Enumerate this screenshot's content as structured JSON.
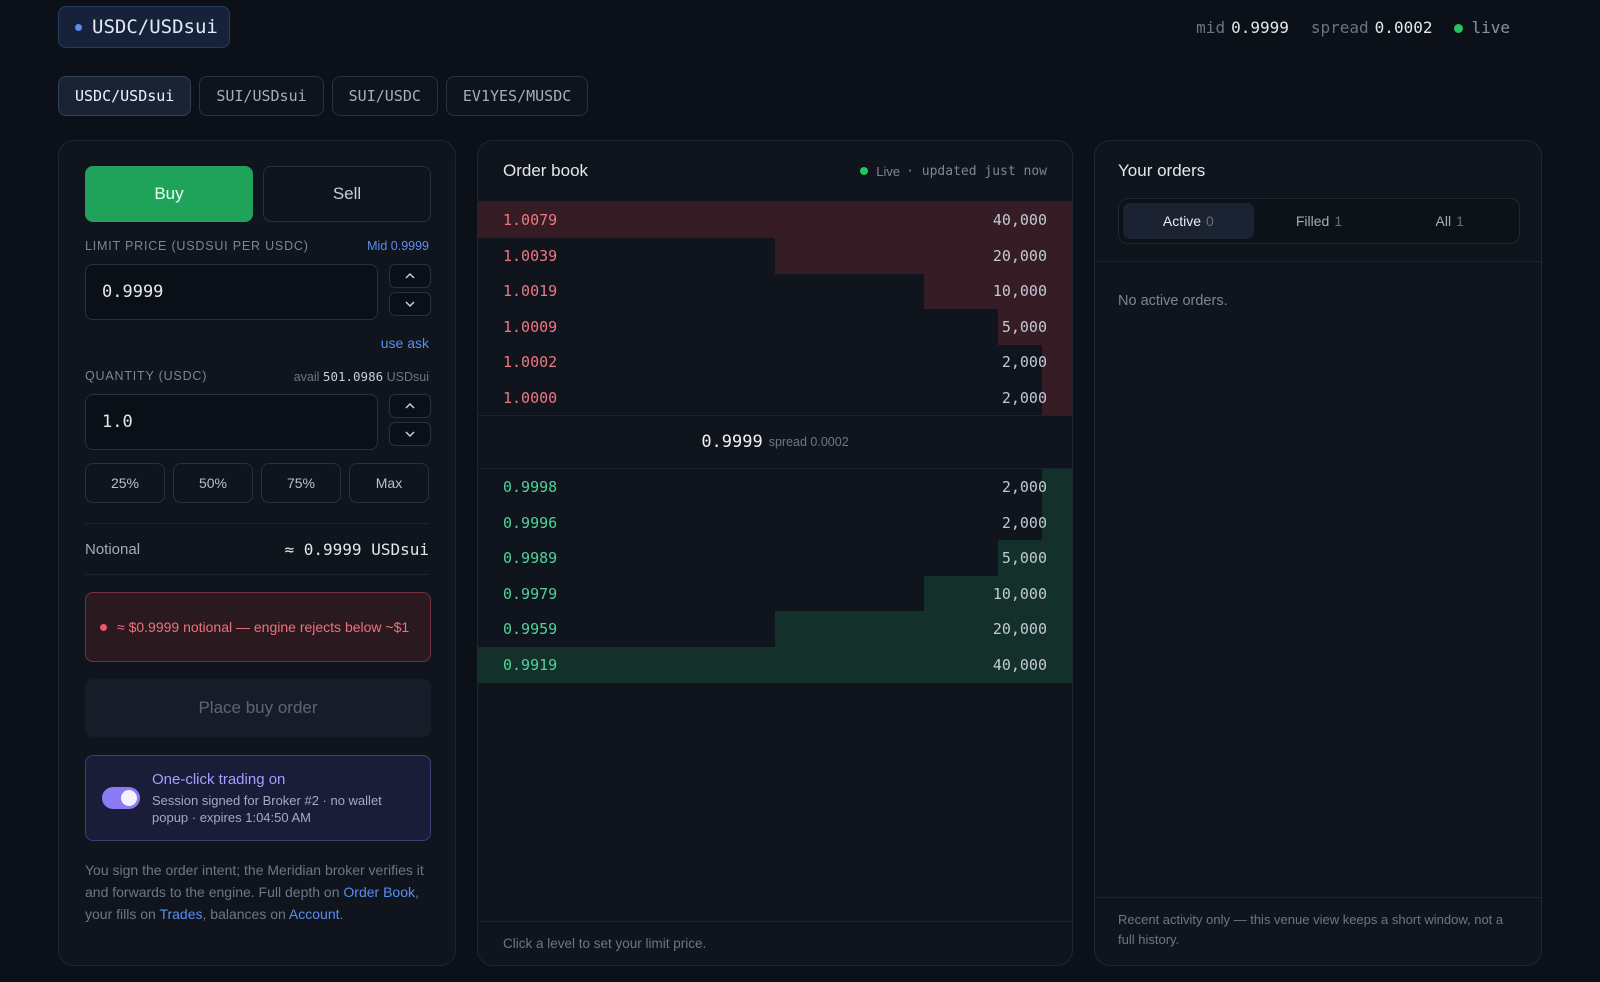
{
  "header": {
    "pair": "USDC/USDsui",
    "mid_label": "mid",
    "mid_value": "0.9999",
    "spread_label": "spread",
    "spread_value": "0.0002",
    "live_label": "live"
  },
  "market_tabs": [
    {
      "label": "USDC/USDsui",
      "active": true
    },
    {
      "label": "SUI/USDsui",
      "active": false
    },
    {
      "label": "SUI/USDC",
      "active": false
    },
    {
      "label": "EV1YES/MUSDC",
      "active": false
    }
  ],
  "trade_form": {
    "buy_label": "Buy",
    "sell_label": "Sell",
    "limit_price_label": "LIMIT PRICE (USDSUI PER USDC)",
    "mid_hint_label": "Mid",
    "mid_hint_value": "0.9999",
    "limit_price_value": "0.9999",
    "use_ask_label": "use ask",
    "quantity_label": "QUANTITY (USDC)",
    "avail_label": "avail",
    "avail_value": "501.0986",
    "avail_unit": "USDsui",
    "quantity_value": "1.0",
    "pct_buttons": [
      "25%",
      "50%",
      "75%",
      "Max"
    ],
    "notional_label": "Notional",
    "notional_value": "≈ 0.9999 USDsui",
    "warning_text": "≈ $0.9999 notional — engine rejects below ~$1",
    "place_button": "Place buy order",
    "oneclick_title": "One-click trading on",
    "oneclick_sub": "Session signed for Broker #2 · no wallet popup · expires 1:04:50 AM",
    "footnote_1": "You sign the order intent; the Meridian broker verifies it and forwards to the engine. Full depth on ",
    "footnote_link_order_book": "Order Book",
    "footnote_2": ", your fills on ",
    "footnote_link_trades": "Trades",
    "footnote_3": ", balances on ",
    "footnote_link_account": "Account",
    "footnote_4": "."
  },
  "order_book": {
    "title": "Order book",
    "status_live": "Live",
    "status_updated": "· updated just now",
    "asks": [
      {
        "price": "1.0079",
        "qty": "40,000",
        "depth": 1.0
      },
      {
        "price": "1.0039",
        "qty": "20,000",
        "depth": 0.5
      },
      {
        "price": "1.0019",
        "qty": "10,000",
        "depth": 0.25
      },
      {
        "price": "1.0009",
        "qty": "5,000",
        "depth": 0.125
      },
      {
        "price": "1.0002",
        "qty": "2,000",
        "depth": 0.05
      },
      {
        "price": "1.0000",
        "qty": "2,000",
        "depth": 0.05
      }
    ],
    "mid_price": "0.9999",
    "spread_text": "spread 0.0002",
    "bids": [
      {
        "price": "0.9998",
        "qty": "2,000",
        "depth": 0.05
      },
      {
        "price": "0.9996",
        "qty": "2,000",
        "depth": 0.05
      },
      {
        "price": "0.9989",
        "qty": "5,000",
        "depth": 0.125
      },
      {
        "price": "0.9979",
        "qty": "10,000",
        "depth": 0.25
      },
      {
        "price": "0.9959",
        "qty": "20,000",
        "depth": 0.5
      },
      {
        "price": "0.9919",
        "qty": "40,000",
        "depth": 1.0
      }
    ],
    "footer": "Click a level to set your limit price."
  },
  "your_orders": {
    "title": "Your orders",
    "tabs": [
      {
        "label": "Active",
        "count": "0",
        "active": true
      },
      {
        "label": "Filled",
        "count": "1",
        "active": false
      },
      {
        "label": "All",
        "count": "1",
        "active": false
      }
    ],
    "empty_text": "No active orders.",
    "footer": "Recent activity only — this venue view keeps a short window, not a full history."
  },
  "colors": {
    "buy": "#1fa35a",
    "ask_text": "#f07683",
    "bid_text": "#4ed49a",
    "accent": "#5b8def",
    "oneclick": "#8b7cf6"
  }
}
